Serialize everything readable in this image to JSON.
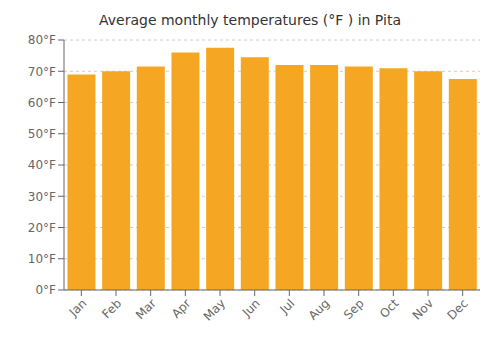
{
  "chart_data": {
    "type": "bar",
    "title": "Average monthly temperatures (°F ) in Pita",
    "categories": [
      "Jan",
      "Feb",
      "Mar",
      "Apr",
      "May",
      "Jun",
      "Jul",
      "Aug",
      "Sep",
      "Oct",
      "Nov",
      "Dec"
    ],
    "values": [
      69,
      70,
      71.5,
      76,
      77.5,
      74.5,
      72,
      72,
      71.5,
      71,
      70,
      67.5
    ],
    "color": "#F5A623",
    "ylim": [
      0,
      80
    ],
    "yticks": [
      {
        "value": 0,
        "label": "0°F"
      },
      {
        "value": 10,
        "label": "10°F"
      },
      {
        "value": 20,
        "label": "20°F"
      },
      {
        "value": 30,
        "label": "30°F"
      },
      {
        "value": 40,
        "label": "40°F"
      },
      {
        "value": 50,
        "label": "50°F"
      },
      {
        "value": 60,
        "label": "60°F"
      },
      {
        "value": 70,
        "label": "70°F"
      },
      {
        "value": 80,
        "label": "80°F"
      }
    ],
    "grid": true
  }
}
